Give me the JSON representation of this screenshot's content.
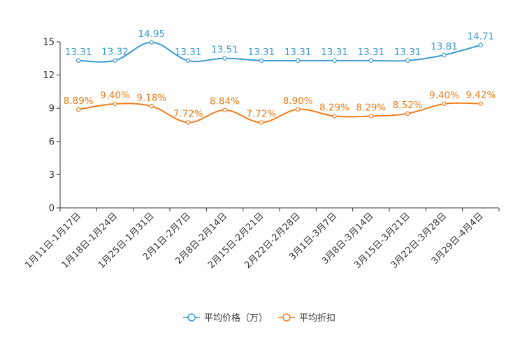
{
  "chart_data": {
    "type": "line",
    "title": "",
    "xlabel": "",
    "ylabel": "",
    "ylim": [
      0,
      15
    ],
    "yticks": [
      0,
      3,
      6,
      9,
      12,
      15
    ],
    "ytick_labels": [
      "0",
      "3",
      "6",
      "9",
      "12",
      "15"
    ],
    "categories": [
      "1月11日-1月17日",
      "1月18日-1月24日",
      "1月25日-1月31日",
      "2月1日-2月7日",
      "2月8日-2月14日",
      "2月15日-2月21日",
      "2月22日-2月28日",
      "3月1日-3月7日",
      "3月8日-3月14日",
      "3月15日-3月21日",
      "3月22日-3月28日",
      "3月29日-4月4日"
    ],
    "series": [
      {
        "name": "平均价格（万）",
        "color": "#3c9cd0",
        "values": [
          13.31,
          13.32,
          14.95,
          13.31,
          13.51,
          13.31,
          13.31,
          13.31,
          13.31,
          13.31,
          13.81,
          14.71
        ],
        "labels": [
          "13.31",
          "13.32",
          "14.95",
          "13.31",
          "13.51",
          "13.31",
          "13.31",
          "13.31",
          "13.31",
          "13.31",
          "13.81",
          "14.71"
        ]
      },
      {
        "name": "平均折扣",
        "color": "#f07c1a",
        "values": [
          8.89,
          9.4,
          9.18,
          7.72,
          8.84,
          7.72,
          8.9,
          8.29,
          8.29,
          8.52,
          9.4,
          9.42
        ],
        "labels": [
          "8.89%",
          "9.40%",
          "9.18%",
          "7.72%",
          "8.84%",
          "7.72%",
          "8.90%",
          "8.29%",
          "8.29%",
          "8.52%",
          "9.40%",
          "9.42%"
        ]
      }
    ],
    "legend_position": "bottom-center",
    "grid": false
  }
}
